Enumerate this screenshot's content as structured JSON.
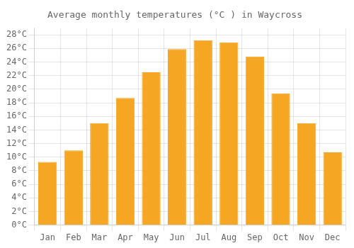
{
  "chart_data": {
    "type": "bar",
    "title": "Average monthly temperatures (°C ) in Waycross",
    "categories": [
      "Jan",
      "Feb",
      "Mar",
      "Apr",
      "May",
      "Jun",
      "Jul",
      "Aug",
      "Sep",
      "Oct",
      "Nov",
      "Dec"
    ],
    "values": [
      9.3,
      11.0,
      15.0,
      18.7,
      22.5,
      25.9,
      27.2,
      26.9,
      24.8,
      19.4,
      15.0,
      10.7
    ],
    "color": "#F5A623",
    "ylim": [
      0,
      29
    ],
    "yticks": [
      {
        "value": 0,
        "label": "0°C"
      },
      {
        "value": 2,
        "label": "2°C"
      },
      {
        "value": 4,
        "label": "4°C"
      },
      {
        "value": 6,
        "label": "6°C"
      },
      {
        "value": 8,
        "label": "8°C"
      },
      {
        "value": 10,
        "label": "10°C"
      },
      {
        "value": 12,
        "label": "12°C"
      },
      {
        "value": 14,
        "label": "14°C"
      },
      {
        "value": 16,
        "label": "16°C"
      },
      {
        "value": 18,
        "label": "18°C"
      },
      {
        "value": 20,
        "label": "20°C"
      },
      {
        "value": 22,
        "label": "22°C"
      },
      {
        "value": 24,
        "label": "24°C"
      },
      {
        "value": 26,
        "label": "26°C"
      },
      {
        "value": 28,
        "label": "28°C"
      }
    ],
    "grid": true
  }
}
